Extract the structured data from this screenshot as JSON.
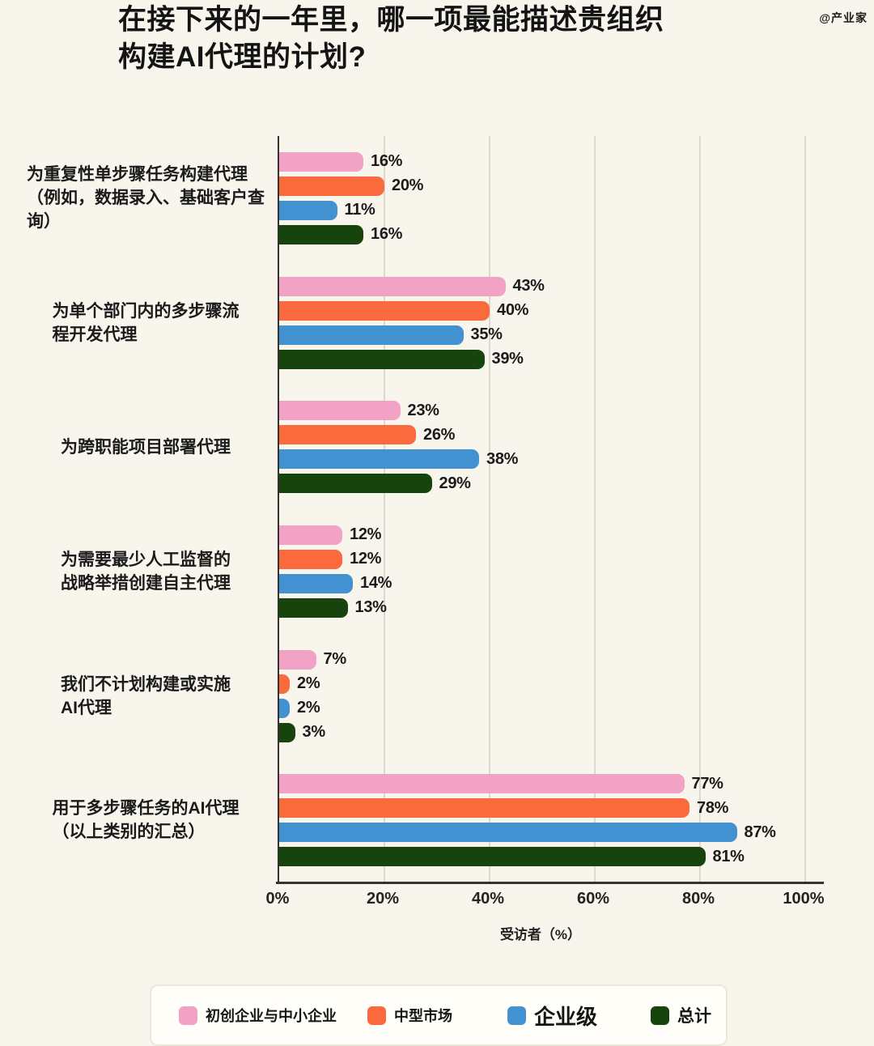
{
  "page": {
    "title": "在接下来的一年里，哪一项最能描述贵组织\n构建AI代理的计划?",
    "watermark": "@产业家"
  },
  "chart_data": {
    "type": "bar",
    "orientation": "horizontal",
    "title": "在接下来的一年里，哪一项最能描述贵组织构建AI代理的计划?",
    "xlabel": "受访者（%）",
    "xlim": [
      0,
      100
    ],
    "x_ticks": [
      "0%",
      "20%",
      "40%",
      "60%",
      "80%",
      "100%"
    ],
    "grid": true,
    "legend_position": "bottom",
    "value_suffix": "%",
    "categories": [
      {
        "label": "为重复性单步骤任务构建代理（例如，数据录入、基础客户查询）",
        "lines": [
          "为重复性单步骤任务构建代理",
          "（例如，数据录入、基础客户查",
          "询）"
        ]
      },
      {
        "label": "为单个部门内的多步骤流程开发代理",
        "lines": [
          "为单个部门内的多步骤流",
          "程开发代理"
        ]
      },
      {
        "label": "为跨职能项目部署代理",
        "lines": [
          "为跨职能项目部署代理"
        ]
      },
      {
        "label": "为需要最少人工监督的战略举措创建自主代理",
        "lines": [
          "为需要最少人工监督的",
          "战略举措创建自主代理"
        ]
      },
      {
        "label": "我们不计划构建或实施AI代理",
        "lines": [
          "我们不计划构建或实施",
          "AI代理"
        ]
      },
      {
        "label": "用于多步骤任务的AI代理（以上类别的汇总）",
        "lines": [
          "用于多步骤任务的AI代理",
          "（以上类别的汇总）"
        ]
      }
    ],
    "series": [
      {
        "name": "初创企业与中小企业",
        "color": "#f2a3c5",
        "values": [
          16,
          43,
          23,
          12,
          7,
          77
        ]
      },
      {
        "name": "中型市场",
        "color": "#fb6a3d",
        "values": [
          20,
          40,
          26,
          12,
          2,
          78
        ]
      },
      {
        "name": "企业级",
        "color": "#4292d1",
        "values": [
          11,
          35,
          38,
          14,
          2,
          87
        ]
      },
      {
        "name": "总计",
        "color": "#17430d",
        "values": [
          16,
          39,
          29,
          13,
          3,
          81
        ]
      }
    ],
    "colors": {
      "background": "#f8f5ed",
      "gridline": "#dbd8cd",
      "axis": "#33322d",
      "text": "#171717"
    }
  }
}
